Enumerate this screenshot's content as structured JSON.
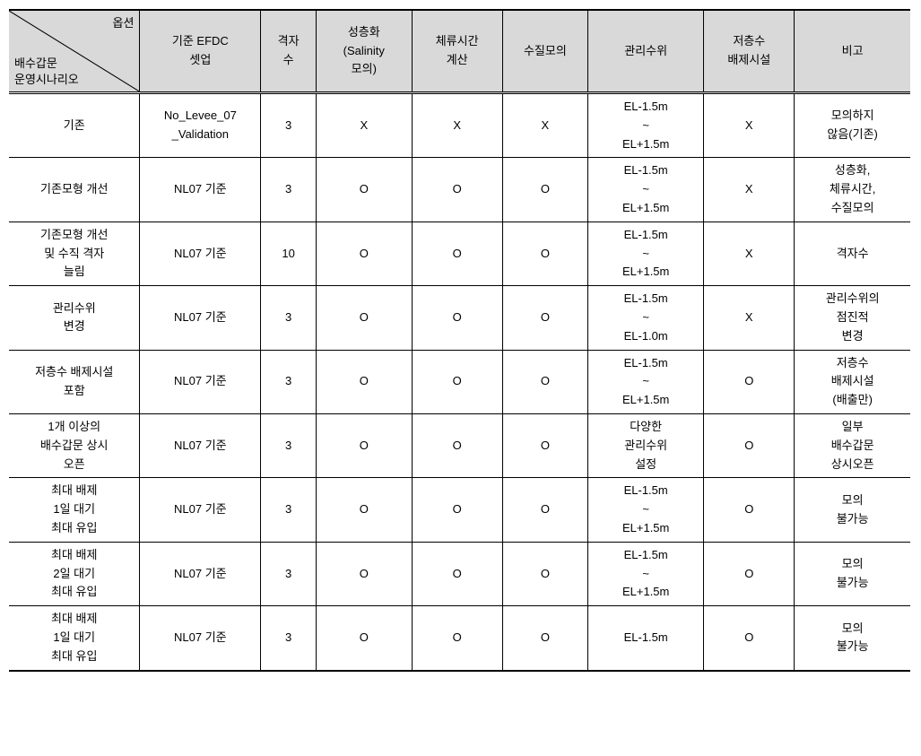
{
  "table": {
    "diag_top": "옵션",
    "diag_bottom": "배수갑문\n운영시나리오",
    "headers": [
      "기준 EFDC\n셋업",
      "격자\n수",
      "성층화\n(Salinity\n모의)",
      "체류시간\n계산",
      "수질모의",
      "관리수위",
      "저층수\n배제시설",
      "비고"
    ],
    "rows": [
      {
        "label": "기존",
        "cells": [
          "No_Levee_07\n_Validation",
          "3",
          "X",
          "X",
          "X",
          "EL-1.5m\n~\nEL+1.5m",
          "X",
          "모의하지\n않음(기존)"
        ]
      },
      {
        "label": "기존모형 개선",
        "cells": [
          "NL07 기준",
          "3",
          "O",
          "O",
          "O",
          "EL-1.5m\n~\nEL+1.5m",
          "X",
          "성층화,\n체류시간,\n수질모의"
        ]
      },
      {
        "label": "기존모형 개선\n및 수직 격자\n늘림",
        "cells": [
          "NL07 기준",
          "10",
          "O",
          "O",
          "O",
          "EL-1.5m\n~\nEL+1.5m",
          "X",
          "격자수"
        ]
      },
      {
        "label": "관리수위\n변경",
        "cells": [
          "NL07 기준",
          "3",
          "O",
          "O",
          "O",
          "EL-1.5m\n~\nEL-1.0m",
          "X",
          "관리수위의\n점진적\n변경"
        ]
      },
      {
        "label": "저층수 배제시설\n포함",
        "cells": [
          "NL07 기준",
          "3",
          "O",
          "O",
          "O",
          "EL-1.5m\n~\nEL+1.5m",
          "O",
          "저층수\n배제시설\n(배출만)"
        ]
      },
      {
        "label": "1개 이상의\n배수갑문 상시\n오픈",
        "cells": [
          "NL07 기준",
          "3",
          "O",
          "O",
          "O",
          "다양한\n관리수위\n설정",
          "O",
          "일부\n배수갑문\n상시오픈"
        ]
      },
      {
        "label": "최대 배제\n1일 대기\n최대 유입",
        "cells": [
          "NL07 기준",
          "3",
          "O",
          "O",
          "O",
          "EL-1.5m\n~\nEL+1.5m",
          "O",
          "모의\n불가능"
        ]
      },
      {
        "label": "최대 배제\n2일 대기\n최대 유입",
        "cells": [
          "NL07 기준",
          "3",
          "O",
          "O",
          "O",
          "EL-1.5m\n~\nEL+1.5m",
          "O",
          "모의\n불가능"
        ]
      },
      {
        "label": "최대 배제\n1일 대기\n최대 유입",
        "cells": [
          "NL07 기준",
          "3",
          "O",
          "O",
          "O",
          "EL-1.5m",
          "O",
          "모의\n불가능"
        ]
      }
    ],
    "colors": {
      "header_bg": "#d9d9d9",
      "border": "#000000",
      "text": "#000000",
      "bg": "#ffffff"
    }
  }
}
